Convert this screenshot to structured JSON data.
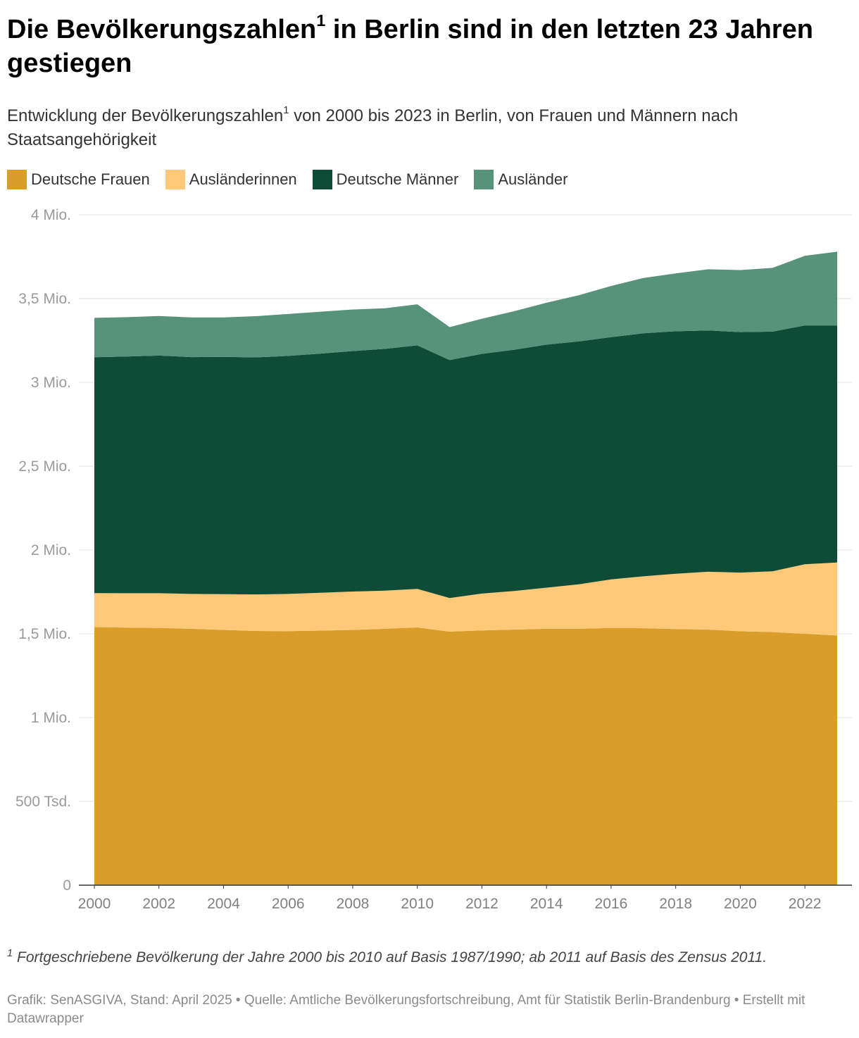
{
  "header": {
    "title_part1": "Die Bevölkerungszahlen",
    "title_sup": "1",
    "title_part2": " in Berlin sind in den letzten 23 Jahren gestiegen",
    "subtitle_part1": "Entwicklung der Bevölkerungszahlen",
    "subtitle_sup": "1",
    "subtitle_part2": " von 2000 bis 2023 in Berlin, von Frauen und Männern nach Staatsangehörigkeit"
  },
  "footer": {
    "footnote_sup": "1",
    "footnote_text": " Fortgeschriebene Bevölkerung der Jahre 2000 bis 2010 auf Basis 1987/1990; ab 2011 auf Basis des Zensus 2011.",
    "credits": "Grafik: SenASGIVA, Stand: April 2025 • Quelle: Amtliche Bevölkerungsfortschreibung, Amt für Statistik Berlin-Brandenburg • Erstellt mit Datawrapper"
  },
  "chart_data": {
    "type": "area",
    "stacked": true,
    "title": "Die Bevölkerungszahlen¹ in Berlin sind in den letzten 23 Jahren gestiegen",
    "subtitle": "Entwicklung der Bevölkerungszahlen¹ von 2000 bis 2023 in Berlin, von Frauen und Männern nach Staatsangehörigkeit",
    "xlabel": "",
    "ylabel": "",
    "x": [
      2000,
      2001,
      2002,
      2003,
      2004,
      2005,
      2006,
      2007,
      2008,
      2009,
      2010,
      2011,
      2012,
      2013,
      2014,
      2015,
      2016,
      2017,
      2018,
      2019,
      2020,
      2021,
      2022,
      2023
    ],
    "x_ticks": [
      "2000",
      "2002",
      "2004",
      "2006",
      "2008",
      "2010",
      "2012",
      "2014",
      "2016",
      "2018",
      "2020",
      "2022"
    ],
    "x_tick_values": [
      2000,
      2002,
      2004,
      2006,
      2008,
      2010,
      2012,
      2014,
      2016,
      2018,
      2020,
      2022
    ],
    "ylim": [
      0,
      4000000
    ],
    "y_ticks": [
      {
        "value": 0,
        "label": "0"
      },
      {
        "value": 500000,
        "label": "500 Tsd."
      },
      {
        "value": 1000000,
        "label": "1 Mio."
      },
      {
        "value": 1500000,
        "label": "1,5 Mio."
      },
      {
        "value": 2000000,
        "label": "2 Mio."
      },
      {
        "value": 2500000,
        "label": "2,5 Mio."
      },
      {
        "value": 3000000,
        "label": "3 Mio."
      },
      {
        "value": 3500000,
        "label": "3,5 Mio."
      },
      {
        "value": 4000000,
        "label": "4 Mio."
      }
    ],
    "grid": true,
    "legend_position": "top-left",
    "series": [
      {
        "name": "Deutsche Frauen",
        "color": "#da9d29",
        "values": [
          1540000,
          1537000,
          1535000,
          1530000,
          1523000,
          1517000,
          1516000,
          1519000,
          1523000,
          1530000,
          1538000,
          1513000,
          1520000,
          1525000,
          1530000,
          1530000,
          1535000,
          1533000,
          1528000,
          1525000,
          1515000,
          1510000,
          1500000,
          1490000
        ]
      },
      {
        "name": "Ausländerinnen",
        "color": "#fdc978",
        "values": [
          203000,
          205000,
          207000,
          208000,
          213000,
          218000,
          222000,
          226000,
          229000,
          227000,
          230000,
          200000,
          220000,
          230000,
          245000,
          265000,
          290000,
          310000,
          330000,
          345000,
          350000,
          363000,
          415000,
          435000
        ]
      },
      {
        "name": "Deutsche Männer",
        "color": "#0f4c38",
        "values": [
          1407000,
          1412000,
          1418000,
          1413000,
          1416000,
          1414000,
          1420000,
          1427000,
          1435000,
          1443000,
          1453000,
          1420000,
          1430000,
          1440000,
          1450000,
          1450000,
          1445000,
          1450000,
          1447000,
          1440000,
          1435000,
          1430000,
          1425000,
          1415000
        ]
      },
      {
        "name": "Ausländer",
        "color": "#57927a",
        "values": [
          235000,
          235000,
          236000,
          237000,
          236000,
          246000,
          250000,
          250000,
          248000,
          242000,
          245000,
          197000,
          210000,
          230000,
          250000,
          275000,
          305000,
          330000,
          345000,
          365000,
          370000,
          380000,
          415000,
          440000
        ]
      }
    ]
  }
}
